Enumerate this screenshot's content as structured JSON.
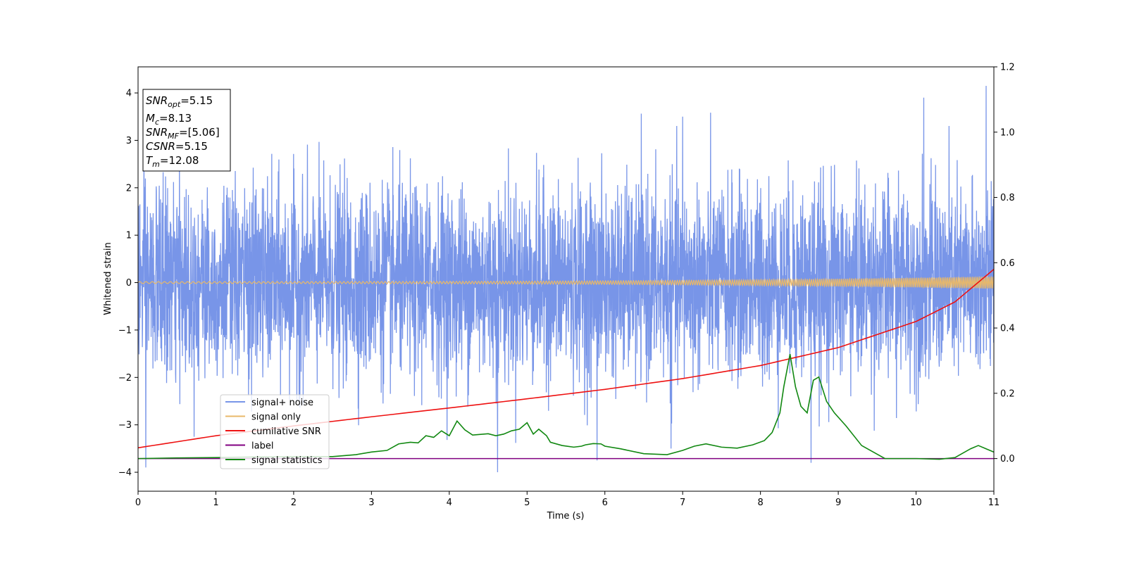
{
  "chart_data": {
    "type": "line",
    "title": "",
    "xlabel": "Time (s)",
    "ylabel": "Whitened strain",
    "y2label": "",
    "xlim": [
      0,
      11
    ],
    "ylim": [
      -4.4,
      4.55
    ],
    "y2lim": [
      -0.1,
      1.2
    ],
    "xticks": [
      0,
      1,
      2,
      3,
      4,
      5,
      6,
      7,
      8,
      9,
      10,
      11
    ],
    "yticks": [
      -4,
      -3,
      -2,
      -1,
      0,
      1,
      2,
      3,
      4
    ],
    "y2ticks": [
      0.0,
      0.2,
      0.4,
      0.6,
      0.8,
      1.0,
      1.2
    ],
    "y2tick_labels": [
      "0.0",
      "0.2",
      "0.4",
      "0.6",
      "0.8",
      "1.0",
      "1.2"
    ],
    "legend_position": "lower-left",
    "annotation": {
      "lines": [
        {
          "var": "SNR",
          "sub": "opt",
          "value": "=5.15"
        },
        {
          "var": "M",
          "sub": "c",
          "value": "=8.13"
        },
        {
          "var": "SNR",
          "sub": "MF",
          "value": "=[5.06]"
        },
        {
          "var": "CSNR",
          "sub": "",
          "value": "=5.15"
        },
        {
          "var": "T",
          "sub": "m",
          "value": "=12.08"
        }
      ]
    },
    "series": [
      {
        "name": "signal+ noise",
        "color": "#7895e8",
        "axis": "left",
        "kind": "noise",
        "std": 1.0,
        "range": [
          -4.0,
          4.15
        ],
        "spikes": [
          {
            "x": 4.62,
            "y": 3.77
          },
          {
            "x": 4.62,
            "y": -4.0
          },
          {
            "x": 10.9,
            "y": 4.15
          },
          {
            "x": 10.1,
            "y": 3.9
          },
          {
            "x": 7.0,
            "y": 3.5
          },
          {
            "x": 8.65,
            "y": -3.8
          },
          {
            "x": 0.1,
            "y": -3.9
          },
          {
            "x": 5.9,
            "y": -3.75
          },
          {
            "x": 6.85,
            "y": -3.5
          }
        ]
      },
      {
        "name": "signal only",
        "color": "#e8b86a",
        "axis": "left",
        "kind": "chirp",
        "amp_start": 0.02,
        "amp_end": 0.13
      },
      {
        "name": "cumilative SNR",
        "color": "#ee1111",
        "axis": "right",
        "x": [
          0,
          1,
          2,
          3,
          4,
          5,
          6,
          7,
          8,
          9,
          10,
          10.5,
          11
        ],
        "y": [
          0.033,
          0.07,
          0.1,
          0.128,
          0.155,
          0.183,
          0.212,
          0.245,
          0.285,
          0.34,
          0.42,
          0.48,
          0.58
        ]
      },
      {
        "name": "label",
        "color": "#800080",
        "axis": "right",
        "x": [
          0,
          11
        ],
        "y": [
          0.0,
          0.0
        ]
      },
      {
        "name": "signal statistics",
        "color": "#118811",
        "axis": "right",
        "x": [
          0,
          0.5,
          1,
          1.5,
          2,
          2.5,
          2.8,
          3.0,
          3.2,
          3.35,
          3.5,
          3.6,
          3.7,
          3.8,
          3.9,
          4.0,
          4.1,
          4.2,
          4.3,
          4.5,
          4.6,
          4.7,
          4.8,
          4.9,
          5.0,
          5.08,
          5.15,
          5.25,
          5.3,
          5.45,
          5.6,
          5.7,
          5.75,
          5.85,
          5.95,
          6.0,
          6.2,
          6.5,
          6.8,
          7.0,
          7.15,
          7.3,
          7.5,
          7.7,
          7.9,
          8.05,
          8.15,
          8.25,
          8.3,
          8.38,
          8.45,
          8.52,
          8.6,
          8.68,
          8.75,
          8.85,
          8.95,
          9.1,
          9.3,
          9.6,
          10.0,
          10.3,
          10.5,
          10.7,
          10.8,
          10.9,
          11.0
        ],
        "y": [
          0.0,
          0.002,
          0.003,
          0.005,
          0.006,
          0.006,
          0.012,
          0.02,
          0.025,
          0.045,
          0.05,
          0.048,
          0.07,
          0.065,
          0.085,
          0.07,
          0.115,
          0.088,
          0.072,
          0.076,
          0.07,
          0.075,
          0.085,
          0.09,
          0.11,
          0.075,
          0.09,
          0.07,
          0.05,
          0.04,
          0.035,
          0.038,
          0.042,
          0.046,
          0.045,
          0.038,
          0.03,
          0.015,
          0.012,
          0.025,
          0.038,
          0.045,
          0.035,
          0.032,
          0.042,
          0.055,
          0.08,
          0.14,
          0.22,
          0.32,
          0.22,
          0.16,
          0.14,
          0.24,
          0.25,
          0.175,
          0.14,
          0.1,
          0.04,
          0.0,
          0.0,
          -0.002,
          0.003,
          0.03,
          0.04,
          0.03,
          0.02
        ]
      }
    ]
  }
}
